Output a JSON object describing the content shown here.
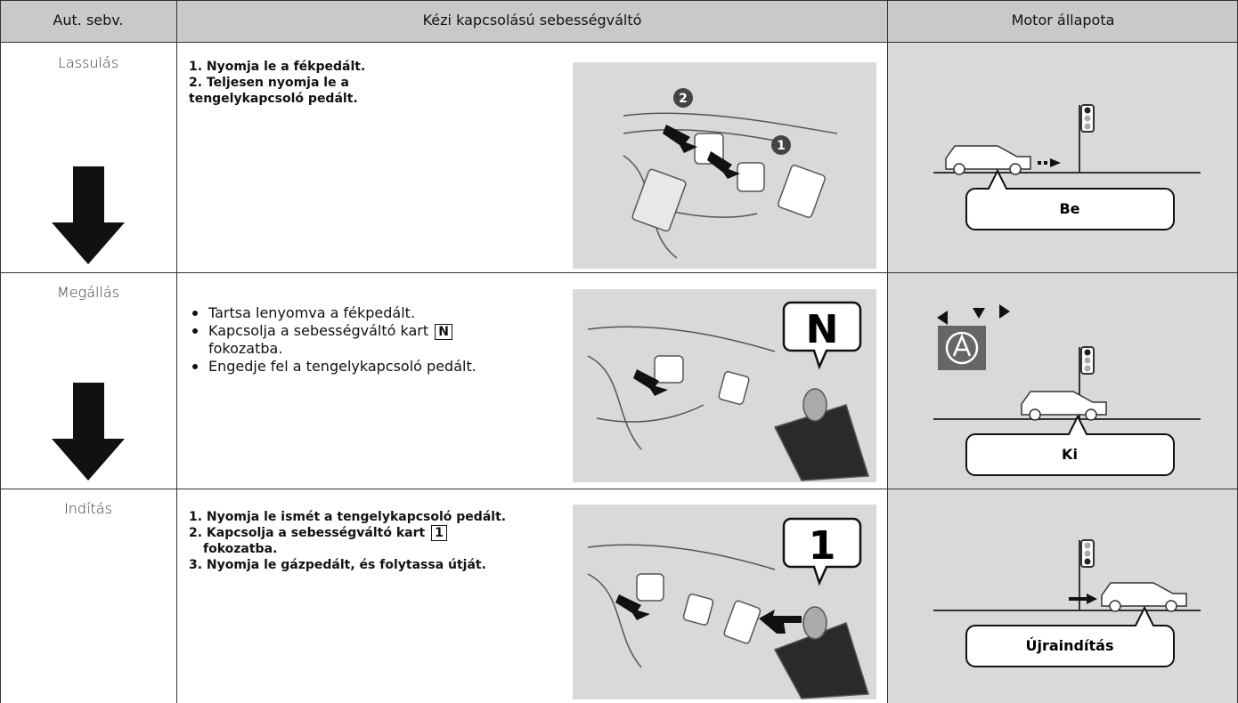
{
  "table": {
    "header": [
      "Aut. sebv.",
      "Kézi kapcsolású sebességváltó",
      "Motor állapota"
    ],
    "rows": [
      {
        "stage": "Lassulás",
        "steps": [
          {
            "text": "1. Nyomja le a fékpedált."
          },
          {
            "text": "2. Teljesen nyomja le a tengelykapcsoló pedált."
          }
        ],
        "markers": [
          "2",
          "1"
        ],
        "status": "Be"
      },
      {
        "stage": "Megállás",
        "steps": [
          {
            "text": "Tartsa lenyomva a fékpedált."
          },
          {
            "text": "Kapcsolja a sebességváltó kart",
            "key": "N",
            "after": "fokozatba."
          },
          {
            "text": "Engedje fel a tengelykapcsoló pedált."
          }
        ],
        "gear": "N",
        "status": "Ki"
      },
      {
        "stage": "Indítás",
        "steps": [
          {
            "text": "1. Nyomja le ismét a tengelykapcsoló pedált."
          },
          {
            "text": "2. Kapcsolja a sebességváltó kart",
            "key": "1",
            "after": "fokozatba."
          },
          {
            "text": "3. Nyomja le gázpedált, és folytassa útját."
          }
        ],
        "gear": "1",
        "status": "Újraindítás"
      }
    ]
  }
}
